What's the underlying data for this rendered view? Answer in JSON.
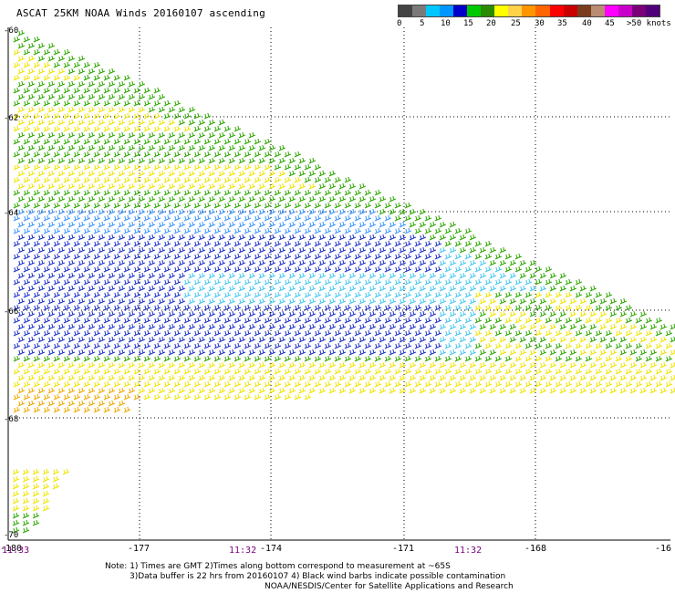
{
  "title": "ASCAT 25KM NOAA Winds 20160107 ascending",
  "legend": {
    "colors": [
      "#444444",
      "#7a7a7a",
      "#00c8ff",
      "#0096ff",
      "#0000c8",
      "#00c800",
      "#2a8a00",
      "#ffff00",
      "#ffd24a",
      "#ff9600",
      "#ff6400",
      "#ff0000",
      "#c80000",
      "#7a3c1e",
      "#b98c73",
      "#ff00ff",
      "#c800c8",
      "#7a007a",
      "#500078"
    ],
    "labels": [
      "0",
      "5",
      "10",
      "15",
      "20",
      "25",
      "30",
      "35",
      "40",
      "45",
      ">50 knots"
    ]
  },
  "axes": {
    "lat_labels": [
      "-60",
      "-62",
      "-64",
      "-66",
      "-68",
      "-70"
    ],
    "lon_labels": [
      "-180",
      "-177",
      "-174",
      "-171",
      "-168",
      "-16"
    ]
  },
  "times": [
    "11:33",
    "11:32",
    "11:32"
  ],
  "notes": {
    "line1": "Note: 1) Times are GMT 2)Times along bottom correspond to measurement at ~65S",
    "line2": "3)Data buffer is 22 hrs from 20160107 4) Black wind barbs indicate possible contamination",
    "line3": "NOAA/NESDIS/Center for Satellite Applications and Research"
  },
  "wind_colors": {
    "green": "#2ea800",
    "dark_green": "#1f7a00",
    "yellow": "#f0e400",
    "orange": "#f0a800",
    "blue": "#1e32c8",
    "light_blue": "#3c96ff",
    "cyan": "#46c8f0",
    "black": "#000000"
  }
}
